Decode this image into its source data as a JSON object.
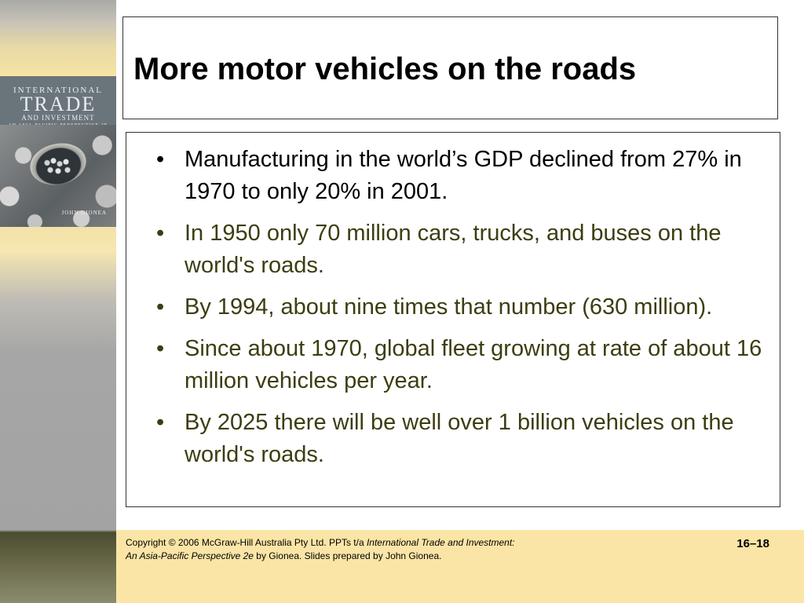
{
  "sidebar": {
    "cover_line1": "INTERNATIONAL",
    "cover_line2": "TRADE",
    "cover_line3": "AND INVESTMENT",
    "cover_subtitle": "AN ASIA-PACIFIC PERSPECTIVE 2E",
    "cover_author": "JOHN GIONEA"
  },
  "title": "More motor vehicles on the roads",
  "bullets": [
    {
      "text": "Manufacturing in the world’s GDP declined from 27% in 1970 to only 20% in 2001."
    },
    {
      "text": "In 1950 only 70 million cars, trucks, and buses on the world's roads."
    },
    {
      "text": "By 1994, about nine times that number (630 million)."
    },
    {
      "text": "Since about 1970, global fleet growing at rate of about 16 million vehicles per year."
    },
    {
      "text": "By 2025 there will be well over 1 billion vehicles on the world's roads."
    }
  ],
  "bullet_char": "•",
  "footer": {
    "copyright_prefix": "Copyright ©  2006 McGraw-Hill Australia Pty Ltd. PPTs t/a ",
    "book_title_1": "International Trade and Investment:",
    "book_title_2": "An Asia-Pacific Perspective 2e",
    "copyright_suffix": " by Gionea. Slides prepared by John Gionea.",
    "slide_number": "16–18"
  },
  "colors": {
    "bullet_text": "#3d3d11",
    "footer_bg": "#fbe5a6"
  }
}
